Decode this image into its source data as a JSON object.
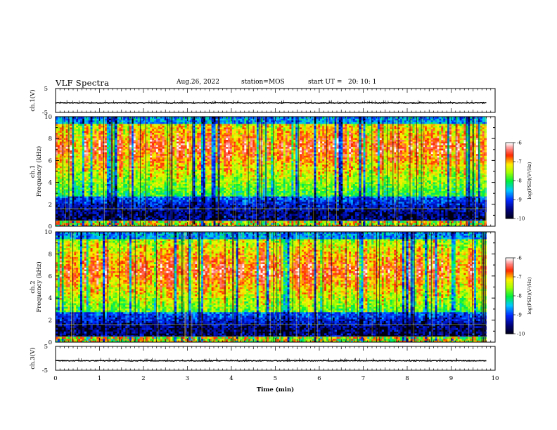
{
  "header": {
    "title": "VLF Spectra",
    "date": "Aug.26, 2022",
    "station_label": "station=",
    "station": "MOS",
    "start_label": "start  UT =",
    "start_ut": "20: 10: 1"
  },
  "chart_data": [
    {
      "type": "line",
      "panel": "ch1-waveform",
      "ylabel": "ch.1(V)",
      "ylim": [
        -5,
        5
      ],
      "y_ticks": [
        "5",
        "-5"
      ],
      "xlim": [
        0,
        10
      ],
      "series": [
        {
          "values_constant": -1
        }
      ]
    },
    {
      "type": "heatmap",
      "panel": "ch1-spectrogram",
      "ylabel_line1": "ch.1",
      "ylabel_line2": "Frequency (kHz)",
      "ylim": [
        0,
        10
      ],
      "y_ticks": [
        "0",
        "2",
        "4",
        "6",
        "8",
        "10"
      ],
      "xlim": [
        0,
        9.8
      ],
      "colorbar": {
        "label": "log(PSD)(V²/Hz)",
        "range": [
          -10,
          -6
        ],
        "ticks": [
          "-6",
          "-7",
          "-8",
          "-9",
          "-10"
        ]
      }
    },
    {
      "type": "heatmap",
      "panel": "ch2-spectrogram",
      "ylabel_line1": "ch.2",
      "ylabel_line2": "Frequency (kHz)",
      "ylim": [
        0,
        10
      ],
      "y_ticks": [
        "0",
        "2",
        "4",
        "6",
        "8",
        "10"
      ],
      "xlim": [
        0,
        9.8
      ],
      "colorbar": {
        "label": "log(PSD)(V²/Hz)",
        "range": [
          -10,
          -6
        ],
        "ticks": [
          "-6",
          "-7",
          "-8",
          "-9",
          "-10"
        ]
      }
    },
    {
      "type": "line",
      "panel": "ch3-waveform",
      "ylabel": "ch.3(V)",
      "ylim": [
        -5,
        5
      ],
      "y_ticks": [
        "5",
        "-5"
      ],
      "xlim": [
        0,
        10
      ],
      "series": [
        {
          "values_constant": -1
        }
      ]
    }
  ],
  "xaxis": {
    "label": "Time  (min)",
    "range": [
      0,
      10
    ],
    "ticks": [
      "0",
      "1",
      "2",
      "3",
      "4",
      "5",
      "6",
      "7",
      "8",
      "9",
      "10"
    ]
  },
  "colors": {
    "low": "#000010",
    "mid_low": "#0000ff",
    "mid": "#00ff00",
    "mid_high": "#ffff00",
    "high": "#ff0000",
    "top": "#ffffff"
  }
}
